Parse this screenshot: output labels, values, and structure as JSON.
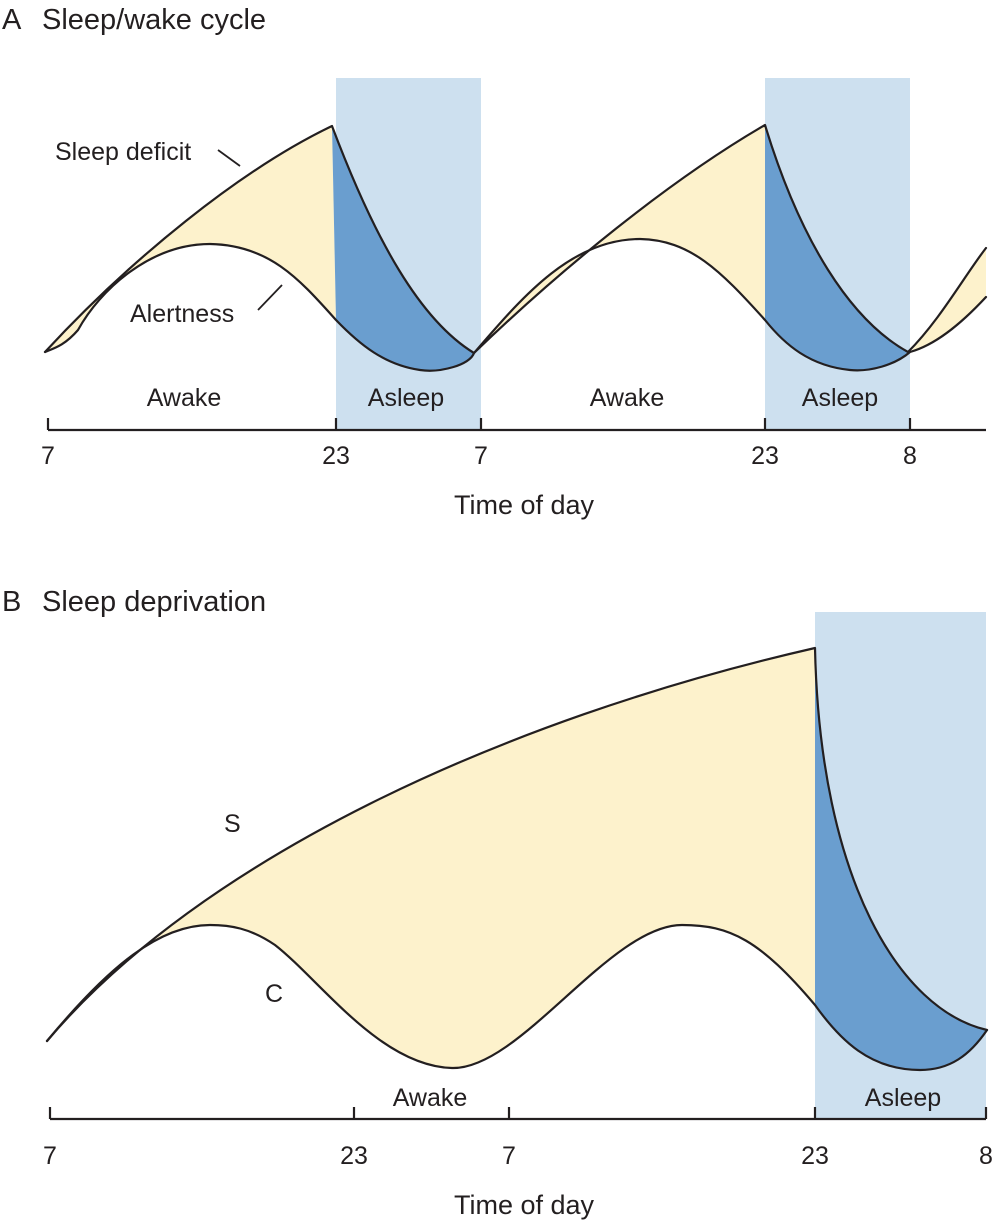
{
  "colors": {
    "asleep_band": "#cde0ef",
    "sleep_deficit_fill": "#fdf2cc",
    "recovery_fill": "#6a9ecf",
    "line": "#231f20"
  },
  "panel_a": {
    "letter": "A",
    "title": "Sleep/wake cycle",
    "curve_labels": {
      "sleep_deficit": "Sleep deficit",
      "alertness": "Alertness"
    },
    "period_labels": [
      "Awake",
      "Asleep",
      "Awake",
      "Asleep"
    ],
    "ticks": [
      "7",
      "23",
      "7",
      "23",
      "8"
    ],
    "x_axis_title": "Time of day"
  },
  "panel_b": {
    "letter": "B",
    "title": "Sleep deprivation",
    "curve_labels": {
      "s": "S",
      "c": "C"
    },
    "period_labels": [
      "Awake",
      "Asleep"
    ],
    "ticks": [
      "7",
      "23",
      "7",
      "23",
      "8"
    ],
    "x_axis_title": "Time of day"
  }
}
